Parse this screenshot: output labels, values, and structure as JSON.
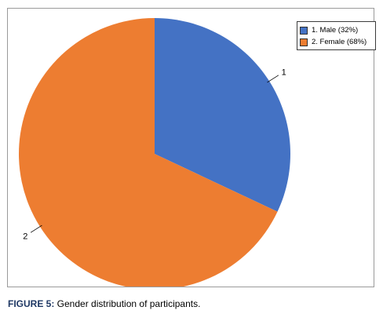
{
  "chart_data": {
    "type": "pie",
    "categories": [
      "1. Male (32%)",
      "2. Female (68%)"
    ],
    "values": [
      32,
      68
    ],
    "slice_labels": [
      "1",
      "2"
    ],
    "colors": [
      "#4472c4",
      "#ed7d31"
    ],
    "legend_position": "top-right",
    "start_angle": "12 o'clock",
    "direction": "clockwise"
  },
  "caption": {
    "label": "FIGURE 5:",
    "text": " Gender distribution of participants."
  }
}
